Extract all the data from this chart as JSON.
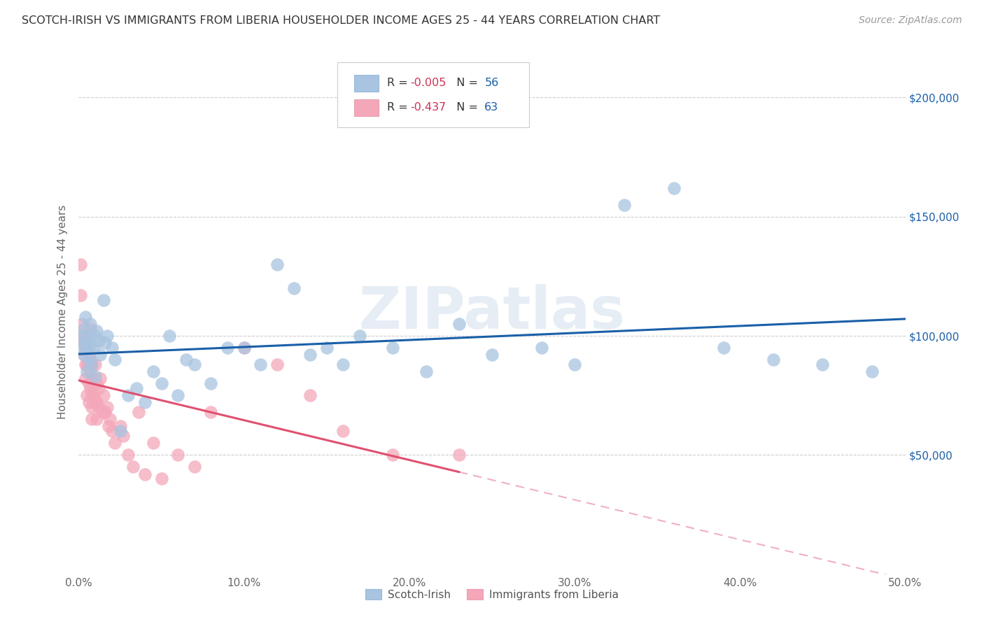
{
  "title": "SCOTCH-IRISH VS IMMIGRANTS FROM LIBERIA HOUSEHOLDER INCOME AGES 25 - 44 YEARS CORRELATION CHART",
  "source": "Source: ZipAtlas.com",
  "ylabel": "Householder Income Ages 25 - 44 years",
  "xlabel_ticks": [
    "0.0%",
    "10.0%",
    "20.0%",
    "30.0%",
    "40.0%",
    "50.0%"
  ],
  "xlabel_vals": [
    0.0,
    0.1,
    0.2,
    0.3,
    0.4,
    0.5
  ],
  "ytick_labels": [
    "$50,000",
    "$100,000",
    "$150,000",
    "$200,000"
  ],
  "ytick_vals": [
    50000,
    100000,
    150000,
    200000
  ],
  "ylim": [
    0,
    220000
  ],
  "xlim": [
    0.0,
    0.5
  ],
  "legend_labels": [
    "Scotch-Irish",
    "Immigrants from Liberia"
  ],
  "R_scotch": -0.005,
  "N_scotch": 56,
  "R_liberia": -0.437,
  "N_liberia": 63,
  "scotch_color": "#a8c4e0",
  "liberia_color": "#f4a7b9",
  "line_scotch_color": "#1a5fa8",
  "line_liberia_color": "#e05070",
  "watermark": "ZIPatlas",
  "background_color": "#ffffff",
  "grid_color": "#cccccc",
  "title_color": "#333333",
  "scotch_x": [
    0.001,
    0.002,
    0.003,
    0.003,
    0.004,
    0.004,
    0.005,
    0.005,
    0.006,
    0.006,
    0.007,
    0.007,
    0.008,
    0.009,
    0.01,
    0.01,
    0.011,
    0.012,
    0.013,
    0.015,
    0.016,
    0.017,
    0.02,
    0.022,
    0.025,
    0.03,
    0.035,
    0.04,
    0.045,
    0.05,
    0.055,
    0.06,
    0.065,
    0.07,
    0.08,
    0.09,
    0.1,
    0.11,
    0.12,
    0.13,
    0.14,
    0.15,
    0.16,
    0.17,
    0.19,
    0.21,
    0.23,
    0.25,
    0.28,
    0.3,
    0.33,
    0.36,
    0.39,
    0.42,
    0.45,
    0.48
  ],
  "scotch_y": [
    100000,
    96000,
    103000,
    92000,
    98000,
    108000,
    95000,
    85000,
    100000,
    90000,
    96000,
    105000,
    88000,
    95000,
    100000,
    83000,
    102000,
    98000,
    92000,
    115000,
    97000,
    100000,
    95000,
    90000,
    60000,
    75000,
    78000,
    72000,
    85000,
    80000,
    100000,
    75000,
    90000,
    88000,
    80000,
    95000,
    95000,
    88000,
    130000,
    120000,
    92000,
    95000,
    88000,
    100000,
    95000,
    85000,
    105000,
    92000,
    95000,
    88000,
    155000,
    162000,
    95000,
    90000,
    88000,
    85000
  ],
  "liberia_x": [
    0.001,
    0.001,
    0.002,
    0.002,
    0.002,
    0.003,
    0.003,
    0.003,
    0.004,
    0.004,
    0.004,
    0.005,
    0.005,
    0.005,
    0.005,
    0.006,
    0.006,
    0.006,
    0.006,
    0.007,
    0.007,
    0.007,
    0.007,
    0.008,
    0.008,
    0.008,
    0.008,
    0.008,
    0.009,
    0.009,
    0.01,
    0.01,
    0.011,
    0.011,
    0.011,
    0.012,
    0.012,
    0.013,
    0.014,
    0.015,
    0.016,
    0.017,
    0.018,
    0.019,
    0.02,
    0.022,
    0.025,
    0.027,
    0.03,
    0.033,
    0.036,
    0.04,
    0.045,
    0.05,
    0.06,
    0.07,
    0.08,
    0.1,
    0.12,
    0.14,
    0.16,
    0.19,
    0.23
  ],
  "liberia_y": [
    130000,
    117000,
    105000,
    98000,
    100000,
    100000,
    97000,
    92000,
    95000,
    88000,
    82000,
    100000,
    95000,
    88000,
    75000,
    92000,
    88000,
    80000,
    72000,
    90000,
    85000,
    78000,
    103000,
    88000,
    82000,
    75000,
    70000,
    65000,
    80000,
    75000,
    88000,
    72000,
    80000,
    72000,
    65000,
    78000,
    70000,
    82000,
    68000,
    75000,
    68000,
    70000,
    62000,
    65000,
    60000,
    55000,
    62000,
    58000,
    50000,
    45000,
    68000,
    42000,
    55000,
    40000,
    50000,
    45000,
    68000,
    95000,
    88000,
    75000,
    60000,
    50000,
    50000
  ]
}
